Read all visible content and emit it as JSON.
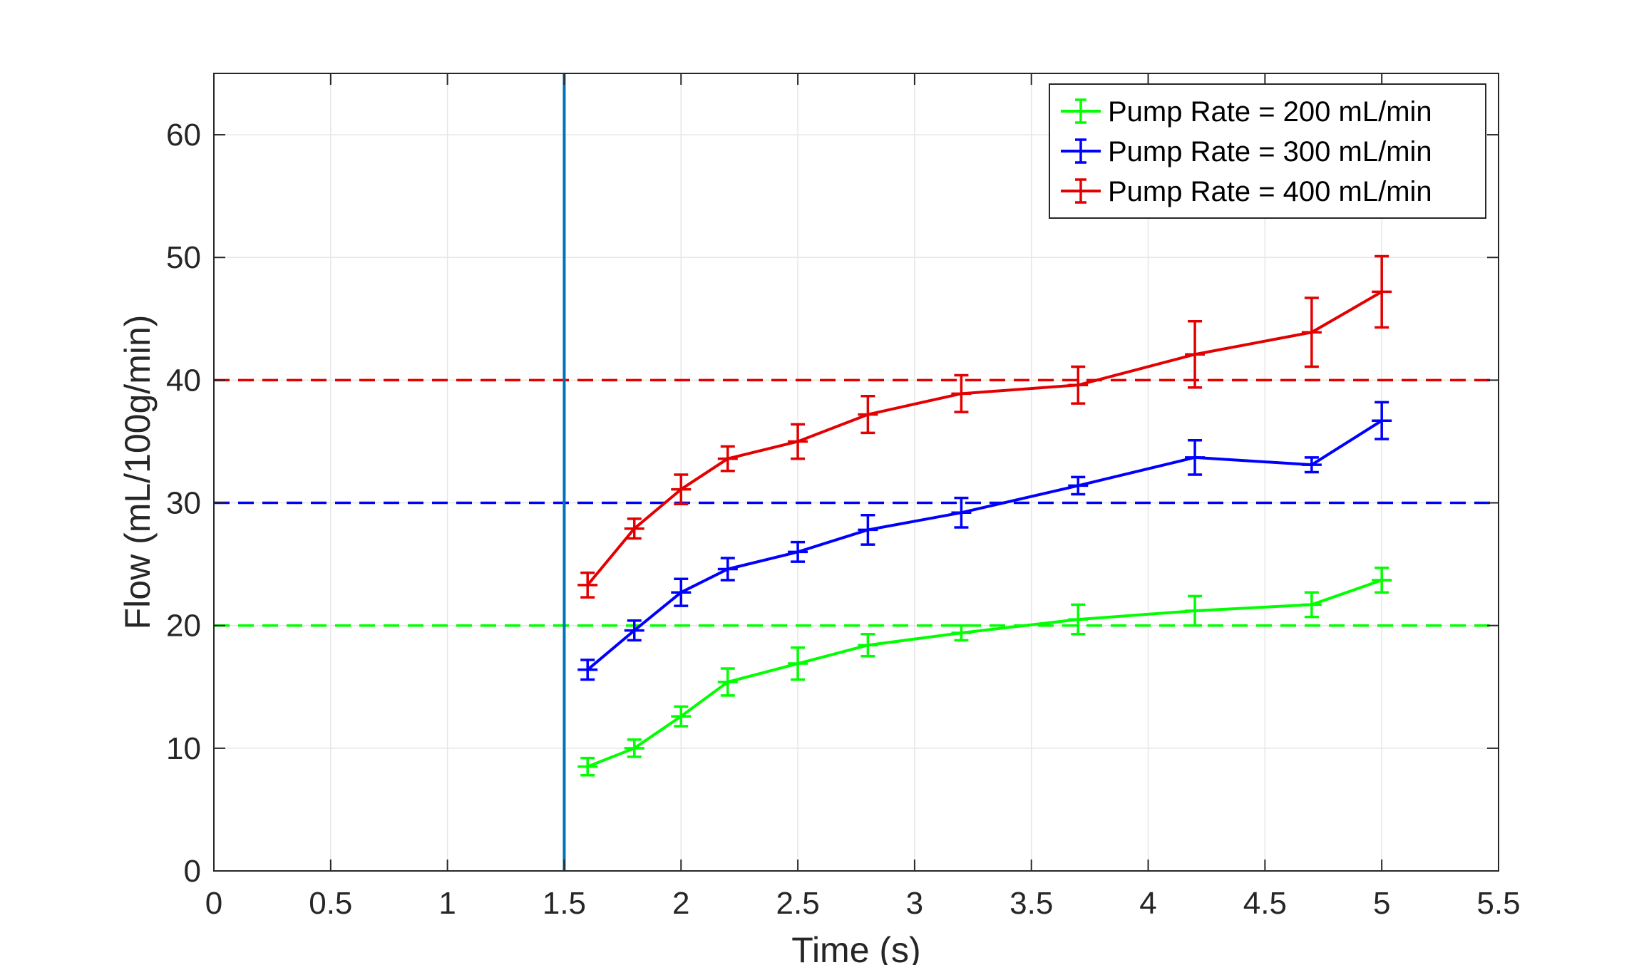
{
  "chart_data": {
    "type": "line",
    "title": "",
    "xlabel": "Time (s)",
    "ylabel": "Flow (mL/100g/min)",
    "xlim": [
      0,
      5.5
    ],
    "ylim": [
      0,
      65
    ],
    "xticks": [
      0,
      0.5,
      1,
      1.5,
      2,
      2.5,
      3,
      3.5,
      4,
      4.5,
      5,
      5.5
    ],
    "xtick_labels": [
      "0",
      "0.5",
      "1",
      "1.5",
      "2",
      "2.5",
      "3",
      "3.5",
      "4",
      "4.5",
      "5",
      "5.5"
    ],
    "yticks": [
      0,
      10,
      20,
      30,
      40,
      50,
      60
    ],
    "ytick_labels": [
      "0",
      "10",
      "20",
      "30",
      "40",
      "50",
      "60"
    ],
    "grid": true,
    "legend_position": "top-right",
    "x": [
      1.6,
      1.8,
      2.0,
      2.2,
      2.5,
      2.8,
      3.2,
      3.7,
      4.2,
      4.7,
      5.0
    ],
    "series": [
      {
        "name": "Pump Rate = 200 mL/min",
        "color": "#00ff00",
        "values": [
          8.5,
          10.0,
          12.6,
          15.4,
          16.9,
          18.4,
          19.4,
          20.5,
          21.2,
          21.7,
          23.7
        ],
        "errors": [
          0.7,
          0.7,
          0.8,
          1.1,
          1.3,
          0.9,
          0.6,
          1.2,
          1.2,
          1.0,
          1.0
        ]
      },
      {
        "name": "Pump Rate = 300 mL/min",
        "color": "#0000ff",
        "values": [
          16.4,
          19.6,
          22.7,
          24.6,
          26.0,
          27.8,
          29.2,
          31.4,
          33.7,
          33.1,
          36.7
        ],
        "errors": [
          0.8,
          0.8,
          1.1,
          0.9,
          0.8,
          1.2,
          1.2,
          0.7,
          1.4,
          0.6,
          1.5
        ]
      },
      {
        "name": "Pump Rate = 400 mL/min",
        "color": "#e30000",
        "values": [
          23.3,
          27.9,
          31.1,
          33.6,
          35.0,
          37.2,
          38.9,
          39.6,
          42.1,
          43.9,
          47.2
        ],
        "errors": [
          1.0,
          0.8,
          1.2,
          1.0,
          1.4,
          1.5,
          1.5,
          1.5,
          2.7,
          2.8,
          2.9
        ]
      }
    ],
    "reference_lines": [
      {
        "axis": "y",
        "value": 20,
        "color": "#00ff00",
        "style": "dashed"
      },
      {
        "axis": "y",
        "value": 30,
        "color": "#0000ff",
        "style": "dashed"
      },
      {
        "axis": "y",
        "value": 40,
        "color": "#e30000",
        "style": "dashed"
      },
      {
        "axis": "x",
        "value": 1.5,
        "color": "#0072bd",
        "style": "solid"
      }
    ]
  }
}
